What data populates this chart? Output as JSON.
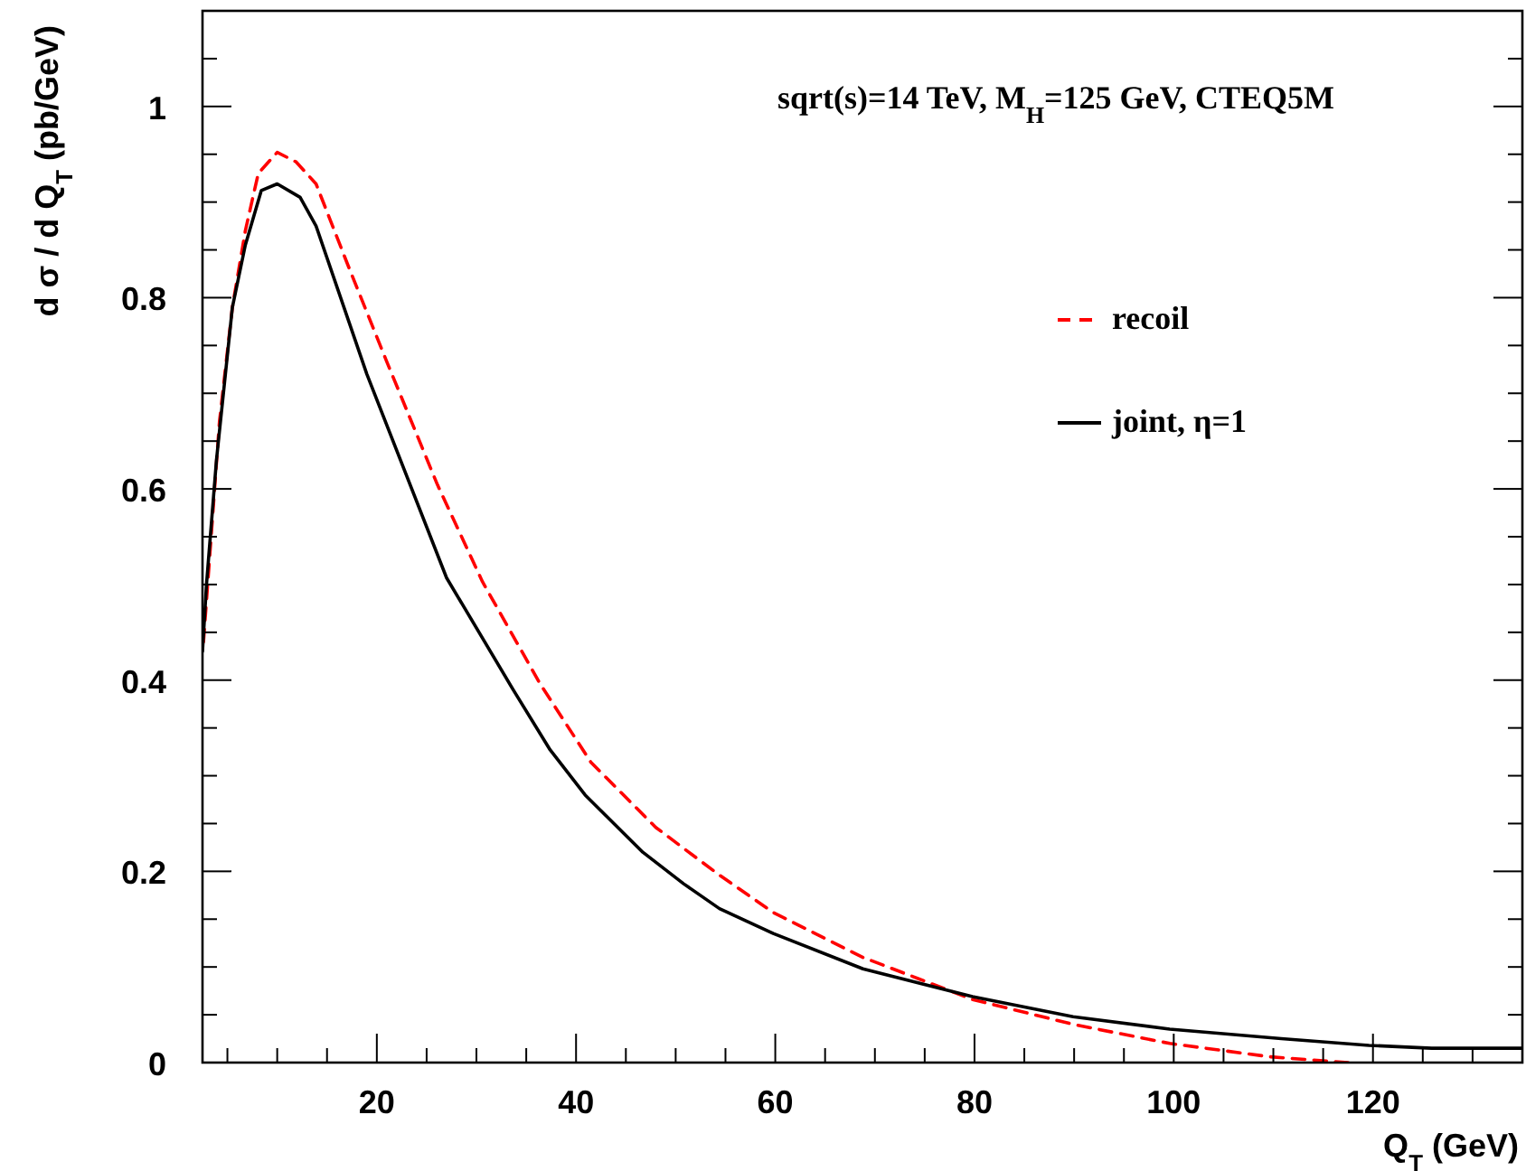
{
  "chart_data": {
    "type": "line",
    "xlabel": "Q$_{T}$ (GeV)",
    "ylabel": "d σ / d Q$_{T}$ (pb/GeV)",
    "annotations": [
      "sqrt(s)=14 TeV, M$_{H}$=125 GeV, CTEQ5M"
    ],
    "xlim": [
      2.5,
      135
    ],
    "ylim": [
      0,
      1.1
    ],
    "xticks": [
      {
        "value": 5,
        "label": null
      },
      {
        "value": 10,
        "label": null
      },
      {
        "value": 15,
        "label": null
      },
      20,
      {
        "value": 25,
        "label": null
      },
      {
        "value": 30,
        "label": null
      },
      {
        "value": 35,
        "label": null
      },
      40,
      {
        "value": 45,
        "label": null
      },
      {
        "value": 50,
        "label": null
      },
      {
        "value": 55,
        "label": null
      },
      60,
      {
        "value": 65,
        "label": null
      },
      {
        "value": 70,
        "label": null
      },
      {
        "value": 75,
        "label": null
      },
      80,
      {
        "value": 85,
        "label": null
      },
      {
        "value": 90,
        "label": null
      },
      {
        "value": 95,
        "label": null
      },
      100,
      {
        "value": 105,
        "label": null
      },
      {
        "value": 110,
        "label": null
      },
      {
        "value": 115,
        "label": null
      },
      120,
      {
        "value": 125,
        "label": null
      },
      {
        "value": 130,
        "label": null
      }
    ],
    "yticks": [
      0,
      {
        "value": 0.05,
        "label": null
      },
      {
        "value": 0.1,
        "label": null
      },
      {
        "value": 0.15,
        "label": null
      },
      0.2,
      {
        "value": 0.25,
        "label": null
      },
      {
        "value": 0.3,
        "label": null
      },
      {
        "value": 0.35,
        "label": null
      },
      0.4,
      {
        "value": 0.45,
        "label": null
      },
      {
        "value": 0.5,
        "label": null
      },
      {
        "value": 0.55,
        "label": null
      },
      0.6,
      {
        "value": 0.65,
        "label": null
      },
      {
        "value": 0.7,
        "label": null
      },
      {
        "value": 0.75,
        "label": null
      },
      0.8,
      {
        "value": 0.85,
        "label": null
      },
      {
        "value": 0.9,
        "label": null
      },
      {
        "value": 0.95,
        "label": null
      },
      1,
      {
        "value": 1.05,
        "label": null
      }
    ],
    "grid": false,
    "legend": "top right",
    "marker": "none",
    "series": [
      {
        "name": "recoil",
        "color": "#ff0000",
        "line_style": "dashed",
        "x": [
          2.6,
          4.2,
          5.5,
          6.8,
          8.1,
          10,
          11.9,
          13.9,
          17.1,
          21,
          26.1,
          30.6,
          36.4,
          41.5,
          48,
          54.4,
          59.8,
          68.8,
          79.8,
          89.9,
          99.6,
          109.7,
          117.5
        ],
        "values": [
          0.44,
          0.67,
          0.79,
          0.87,
          0.93,
          0.952,
          0.942,
          0.919,
          0.834,
          0.733,
          0.604,
          0.503,
          0.396,
          0.314,
          0.246,
          0.196,
          0.157,
          0.11,
          0.066,
          0.04,
          0.02,
          0.006,
          0
        ]
      },
      {
        "name": "joint, η=1",
        "color": "#000000",
        "line_style": "solid",
        "x": [
          2.5,
          2.9,
          3.9,
          5.5,
          6.8,
          8.4,
          10,
          12.3,
          13.9,
          19,
          27,
          33.8,
          37.4,
          40.9,
          46.7,
          50.8,
          54.4,
          59.8,
          68.8,
          79.8,
          89.9,
          99.6,
          110.8,
          119.6,
          125.9,
          135
        ],
        "values": [
          0.43,
          0.5,
          0.63,
          0.79,
          0.855,
          0.912,
          0.919,
          0.905,
          0.875,
          0.72,
          0.507,
          0.388,
          0.327,
          0.28,
          0.22,
          0.187,
          0.161,
          0.135,
          0.098,
          0.069,
          0.048,
          0.035,
          0.025,
          0.018,
          0.015,
          0.015
        ]
      }
    ]
  }
}
